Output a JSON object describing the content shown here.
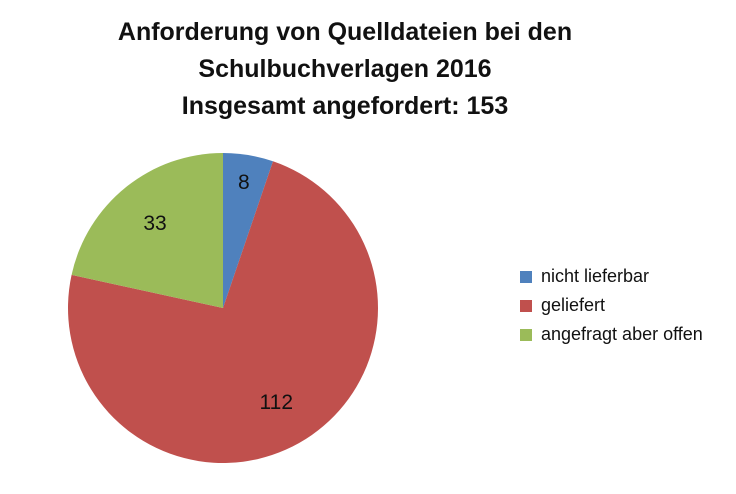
{
  "chart_data": {
    "type": "pie",
    "title": "Anforderung von Quelldateien bei den Schulbuchverlagen 2016",
    "title_lines": [
      "Anforderung von Quelldateien bei den",
      "Schulbuchverlagen 2016",
      "Insgesamt angefordert: 153"
    ],
    "categories": [
      "nicht lieferbar",
      "geliefert",
      "angefragt aber offen"
    ],
    "values": [
      8,
      112,
      33
    ],
    "data_labels": [
      "8",
      "112",
      "33"
    ],
    "colors": [
      "#4f81bd",
      "#c0504d",
      "#9bbb59"
    ],
    "legend_position": "right",
    "start_angle_deg": 0,
    "direction": "clockwise"
  }
}
